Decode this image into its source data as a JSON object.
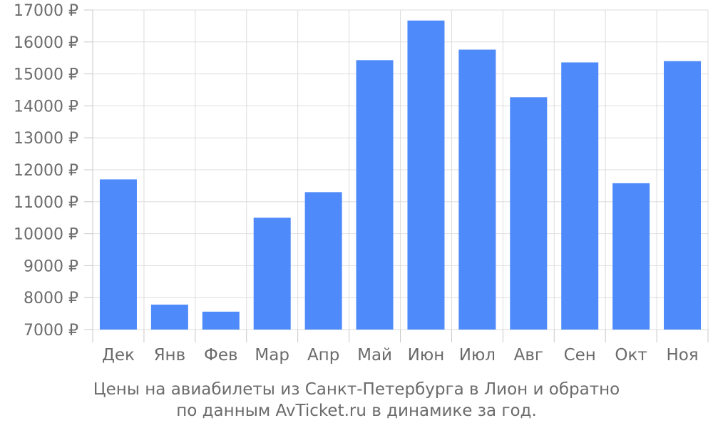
{
  "chart_data": {
    "type": "bar",
    "categories": [
      "Дек",
      "Янв",
      "Фев",
      "Мар",
      "Апр",
      "Май",
      "Июн",
      "Июл",
      "Авг",
      "Сен",
      "Окт",
      "Ноя"
    ],
    "values": [
      11700,
      7780,
      7560,
      10500,
      11300,
      15430,
      16670,
      15760,
      14270,
      15360,
      11580,
      15400
    ],
    "ylim": [
      7000,
      17000
    ],
    "yticks": [
      7000,
      8000,
      9000,
      10000,
      11000,
      12000,
      13000,
      14000,
      15000,
      16000,
      17000
    ],
    "ytick_suffix": " ₽",
    "grid": true,
    "bar_color": "#4e8afa",
    "caption_line1": "Цены на авиабилеты из Санкт-Петербурга в Лион и обратно",
    "caption_line2": "по данным AvTicket.ru в динамике за год."
  }
}
